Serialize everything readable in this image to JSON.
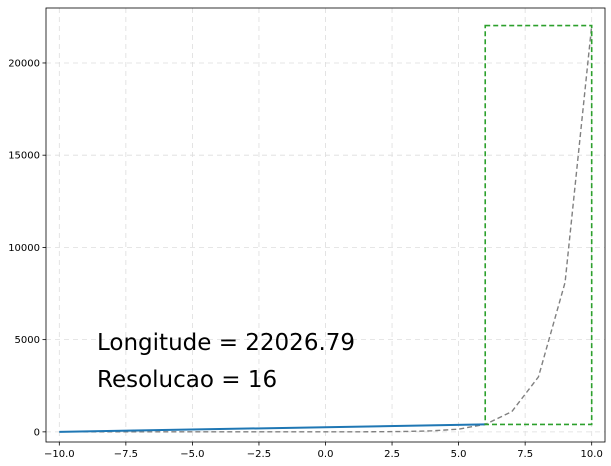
{
  "chart_data": {
    "type": "line",
    "title": "",
    "xlabel": "",
    "ylabel": "",
    "xlim": [
      -10.5,
      10.5
    ],
    "ylim": [
      -550,
      22980
    ],
    "grid": true,
    "x_ticks": [
      -10.0,
      -7.5,
      -5.0,
      -2.5,
      0.0,
      2.5,
      5.0,
      7.5,
      10.0
    ],
    "x_tick_labels": [
      "−10.0",
      "−7.5",
      "−5.0",
      "−2.5",
      "0.0",
      "2.5",
      "5.0",
      "7.5",
      "10.0"
    ],
    "y_ticks": [
      0,
      5000,
      10000,
      15000,
      20000
    ],
    "y_tick_labels": [
      "0",
      "5000",
      "10000",
      "15000",
      "20000"
    ],
    "series": [
      {
        "style": "dashed",
        "color": "#808080",
        "x": [
          -10,
          -9,
          -8,
          -7,
          -6,
          -5,
          -4,
          -3,
          -2,
          -1,
          0,
          1,
          2,
          3,
          4,
          5,
          6,
          7,
          8,
          9,
          10
        ],
        "y": [
          5e-05,
          0.0001,
          0.0003,
          0.0009,
          0.0025,
          0.0067,
          0.018,
          0.05,
          0.14,
          0.37,
          1,
          2.72,
          7.39,
          20.09,
          54.6,
          148.41,
          403.43,
          1096.63,
          2980.96,
          8103.08,
          22026.47
        ]
      },
      {
        "style": "solid",
        "color": "#1f77b4",
        "x": [
          -10,
          6
        ],
        "y": [
          0,
          403.43
        ]
      }
    ],
    "highlight_rect": {
      "color": "#2ca02c",
      "style": "dashed",
      "x": [
        6,
        10
      ],
      "y": [
        403.43,
        22026.47
      ]
    },
    "annotations": {
      "longitude": "Longitude = 22026.79",
      "resolution": "Resolucao = 16"
    }
  }
}
